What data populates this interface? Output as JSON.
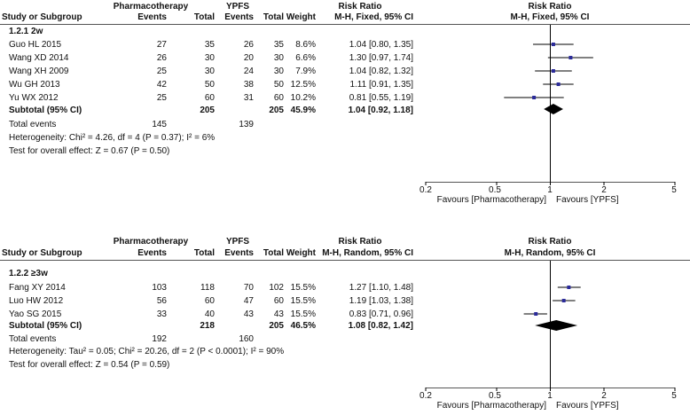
{
  "chart_data": [
    {
      "type": "forest",
      "subgroup_label": "1.2.1 2w",
      "header": {
        "study": "Study or Subgroup",
        "group1": "Pharmacotherapy",
        "group2": "YPFS",
        "events": "Events",
        "total": "Total",
        "weight": "Weight",
        "effect_title": "Risk Ratio",
        "effect_method": "M-H, Fixed, 95% CI",
        "plot_title": "Risk Ratio",
        "plot_method": "M-H, Fixed, 95% CI"
      },
      "studies": [
        {
          "name": "Guo HL 2015",
          "e1": "27",
          "n1": "35",
          "e2": "26",
          "n2": "35",
          "weight": "8.6%",
          "ci_text": "1.04 [0.80, 1.35]",
          "rr": 1.04,
          "lo": 0.8,
          "hi": 1.35
        },
        {
          "name": "Wang XD 2014",
          "e1": "26",
          "n1": "30",
          "e2": "20",
          "n2": "30",
          "weight": "6.6%",
          "ci_text": "1.30 [0.97, 1.74]",
          "rr": 1.3,
          "lo": 0.97,
          "hi": 1.74
        },
        {
          "name": "Wang XH 2009",
          "e1": "25",
          "n1": "30",
          "e2": "24",
          "n2": "30",
          "weight": "7.9%",
          "ci_text": "1.04 [0.82, 1.32]",
          "rr": 1.04,
          "lo": 0.82,
          "hi": 1.32
        },
        {
          "name": "Wu GH 2013",
          "e1": "42",
          "n1": "50",
          "e2": "38",
          "n2": "50",
          "weight": "12.5%",
          "ci_text": "1.11 [0.91, 1.35]",
          "rr": 1.11,
          "lo": 0.91,
          "hi": 1.35
        },
        {
          "name": "Yu WX 2012",
          "e1": "25",
          "n1": "60",
          "e2": "31",
          "n2": "60",
          "weight": "10.2%",
          "ci_text": "0.81 [0.55, 1.19]",
          "rr": 0.81,
          "lo": 0.55,
          "hi": 1.19
        }
      ],
      "subtotal": {
        "label": "Subtotal (95% CI)",
        "n1": "205",
        "n2": "205",
        "weight": "45.9%",
        "ci_text": "1.04 [0.92, 1.18]",
        "rr": 1.04,
        "lo": 0.92,
        "hi": 1.18
      },
      "total_events": {
        "label": "Total events",
        "e1": "145",
        "e2": "139"
      },
      "heterogeneity": "Heterogeneity: Chi² = 4.26, df = 4 (P = 0.37); I² = 6%",
      "overall_effect": "Test for overall effect: Z = 0.67 (P = 0.50)",
      "axis": {
        "scale": "log",
        "xlim": [
          0.2,
          5
        ],
        "ticks": [
          "0.2",
          "0.5",
          "1",
          "2",
          "5"
        ],
        "left_label": "Favours [Pharmacotherapy]",
        "right_label": "Favours [YPFS]"
      }
    },
    {
      "type": "forest",
      "subgroup_label": "1.2.2 ≥3w",
      "header": {
        "study": "Study or Subgroup",
        "group1": "Pharmacotherapy",
        "group2": "YPFS",
        "events": "Events",
        "total": "Total",
        "weight": "Weight",
        "effect_title": "Risk Ratio",
        "effect_method": "M-H, Random, 95% CI",
        "plot_title": "Risk Ratio",
        "plot_method": "M-H, Random, 95% CI"
      },
      "studies": [
        {
          "name": "Fang XY 2014",
          "e1": "103",
          "n1": "118",
          "e2": "70",
          "n2": "102",
          "weight": "15.5%",
          "ci_text": "1.27 [1.10, 1.48]",
          "rr": 1.27,
          "lo": 1.1,
          "hi": 1.48
        },
        {
          "name": "Luo HW 2012",
          "e1": "56",
          "n1": "60",
          "e2": "47",
          "n2": "60",
          "weight": "15.5%",
          "ci_text": "1.19 [1.03, 1.38]",
          "rr": 1.19,
          "lo": 1.03,
          "hi": 1.38
        },
        {
          "name": "Yao SG 2015",
          "e1": "33",
          "n1": "40",
          "e2": "43",
          "n2": "43",
          "weight": "15.5%",
          "ci_text": "0.83 [0.71, 0.96]",
          "rr": 0.83,
          "lo": 0.71,
          "hi": 0.96
        }
      ],
      "subtotal": {
        "label": "Subtotal (95% CI)",
        "n1": "218",
        "n2": "205",
        "weight": "46.5%",
        "ci_text": "1.08 [0.82, 1.42]",
        "rr": 1.08,
        "lo": 0.82,
        "hi": 1.42
      },
      "total_events": {
        "label": "Total events",
        "e1": "192",
        "e2": "160"
      },
      "heterogeneity": "Heterogeneity: Tau² = 0.05; Chi² = 20.26, df = 2 (P < 0.0001); I² = 90%",
      "overall_effect": "Test for overall effect: Z = 0.54 (P = 0.59)",
      "axis": {
        "scale": "log",
        "xlim": [
          0.2,
          5
        ],
        "ticks": [
          "0.2",
          "0.5",
          "1",
          "2",
          "5"
        ],
        "left_label": "Favours [Pharmacotherapy]",
        "right_label": "Favours [YPFS]"
      }
    }
  ],
  "colors": {
    "marker": "#2b2b9a",
    "diamond": "#000000",
    "line": "#000000"
  }
}
